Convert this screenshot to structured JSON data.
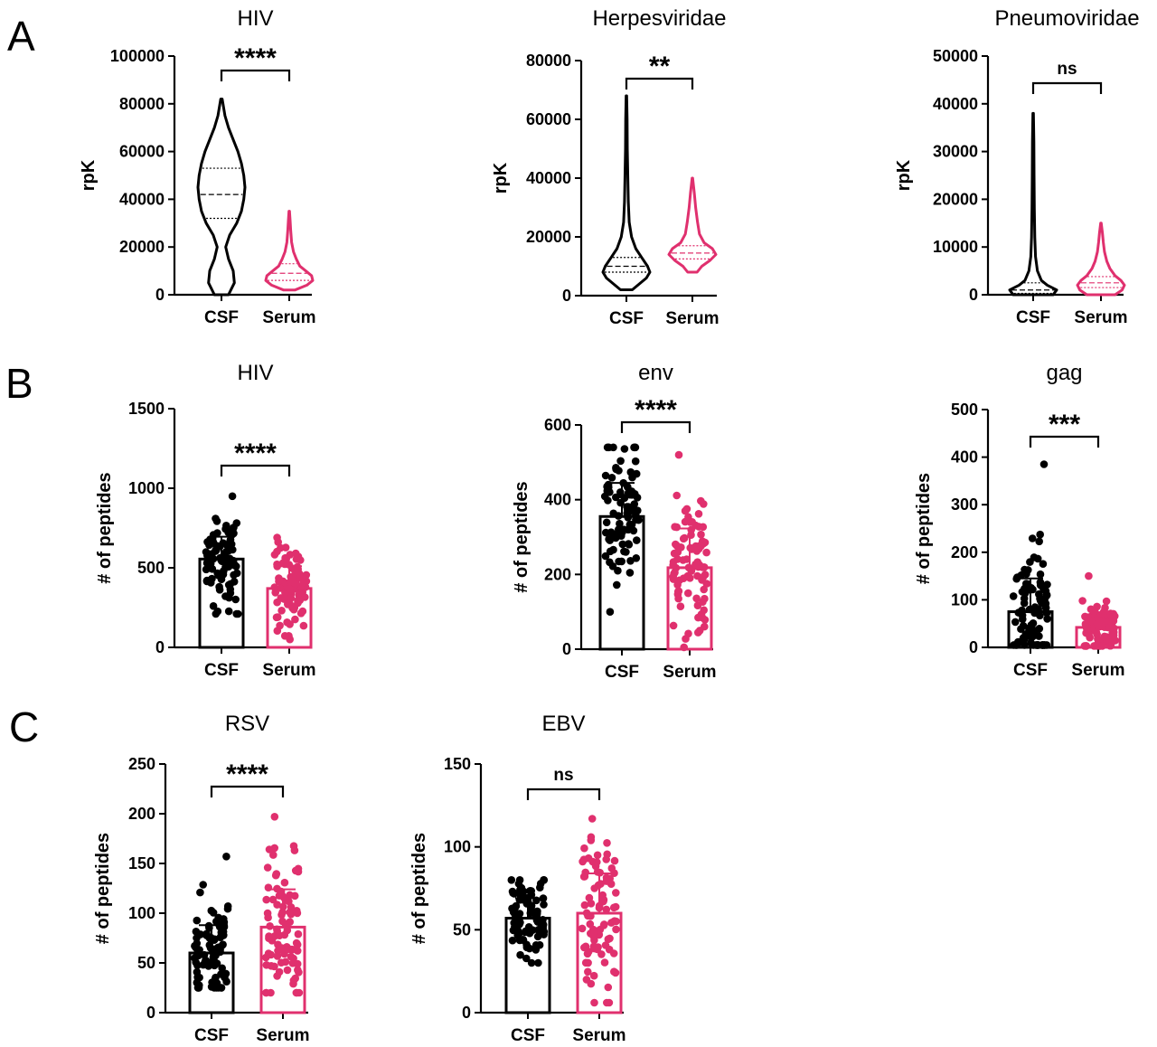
{
  "panels": [
    {
      "letter": "A"
    },
    {
      "letter": "B"
    },
    {
      "letter": "C"
    }
  ],
  "colors": {
    "csf": "#000000",
    "serum": "#e0306e"
  },
  "chart_data": [
    {
      "panel": "A",
      "type": "violin",
      "title": "HIV",
      "ylabel": "rpK",
      "ylim": [
        0,
        100000
      ],
      "yticks": [
        0,
        20000,
        40000,
        60000,
        80000,
        100000
      ],
      "categories": [
        "CSF",
        "Serum"
      ],
      "series": [
        {
          "name": "CSF",
          "color": "#000000",
          "min": 0,
          "max": 82000,
          "q1": 32000,
          "median": 42000,
          "q3": 53000,
          "density": [
            [
              0,
              0.3
            ],
            [
              5000,
              0.55
            ],
            [
              10000,
              0.5
            ],
            [
              15000,
              0.3
            ],
            [
              20000,
              0.18
            ],
            [
              25000,
              0.35
            ],
            [
              30000,
              0.65
            ],
            [
              35000,
              0.85
            ],
            [
              40000,
              0.95
            ],
            [
              45000,
              1.0
            ],
            [
              50000,
              0.95
            ],
            [
              55000,
              0.85
            ],
            [
              60000,
              0.7
            ],
            [
              65000,
              0.5
            ],
            [
              70000,
              0.3
            ],
            [
              75000,
              0.15
            ],
            [
              82000,
              0.03
            ]
          ]
        },
        {
          "name": "Serum",
          "color": "#e0306e",
          "min": 2000,
          "max": 35000,
          "q1": 6000,
          "median": 9000,
          "q3": 13000,
          "density": [
            [
              2000,
              0.25
            ],
            [
              4000,
              0.75
            ],
            [
              6000,
              1.0
            ],
            [
              8000,
              0.95
            ],
            [
              10000,
              0.7
            ],
            [
              12000,
              0.45
            ],
            [
              15000,
              0.3
            ],
            [
              18000,
              0.18
            ],
            [
              22000,
              0.1
            ],
            [
              27000,
              0.06
            ],
            [
              31000,
              0.04
            ],
            [
              35000,
              0.01
            ]
          ]
        }
      ],
      "comparison": {
        "label": "****"
      }
    },
    {
      "panel": "A",
      "type": "violin",
      "title": "Herpesviridae",
      "ylabel": "rpK",
      "ylim": [
        0,
        80000
      ],
      "yticks": [
        0,
        20000,
        40000,
        60000,
        80000
      ],
      "categories": [
        "CSF",
        "Serum"
      ],
      "series": [
        {
          "name": "CSF",
          "color": "#000000",
          "min": 2000,
          "max": 68000,
          "q1": 8000,
          "median": 10000,
          "q3": 13000,
          "density": [
            [
              2000,
              0.25
            ],
            [
              4000,
              0.55
            ],
            [
              6000,
              0.85
            ],
            [
              8000,
              1.0
            ],
            [
              10000,
              0.9
            ],
            [
              13000,
              0.65
            ],
            [
              16000,
              0.4
            ],
            [
              20000,
              0.22
            ],
            [
              25000,
              0.12
            ],
            [
              32000,
              0.08
            ],
            [
              40000,
              0.06
            ],
            [
              50000,
              0.04
            ],
            [
              60000,
              0.03
            ],
            [
              68000,
              0.01
            ]
          ]
        },
        {
          "name": "Serum",
          "color": "#e0306e",
          "min": 8000,
          "max": 40000,
          "q1": 12500,
          "median": 14500,
          "q3": 17000,
          "density": [
            [
              8000,
              0.2
            ],
            [
              10000,
              0.4
            ],
            [
              12000,
              0.75
            ],
            [
              14000,
              1.0
            ],
            [
              16000,
              0.85
            ],
            [
              18000,
              0.5
            ],
            [
              21000,
              0.3
            ],
            [
              25000,
              0.22
            ],
            [
              30000,
              0.14
            ],
            [
              35000,
              0.08
            ],
            [
              40000,
              0.01
            ]
          ]
        }
      ],
      "comparison": {
        "label": "**"
      }
    },
    {
      "panel": "A",
      "type": "violin",
      "title": "Pneumoviridae",
      "ylabel": "rpK",
      "ylim": [
        0,
        50000
      ],
      "yticks": [
        0,
        10000,
        20000,
        30000,
        40000,
        50000
      ],
      "categories": [
        "CSF",
        "Serum"
      ],
      "series": [
        {
          "name": "CSF",
          "color": "#000000",
          "min": 0,
          "max": 38000,
          "q1": 300,
          "median": 1000,
          "q3": 2500,
          "density": [
            [
              0,
              0.85
            ],
            [
              1000,
              1.0
            ],
            [
              2000,
              0.6
            ],
            [
              3000,
              0.35
            ],
            [
              5000,
              0.18
            ],
            [
              8000,
              0.1
            ],
            [
              12000,
              0.07
            ],
            [
              18000,
              0.05
            ],
            [
              25000,
              0.04
            ],
            [
              32000,
              0.03
            ],
            [
              38000,
              0.01
            ]
          ]
        },
        {
          "name": "Serum",
          "color": "#e0306e",
          "min": 0,
          "max": 15000,
          "q1": 1500,
          "median": 2500,
          "q3": 3800,
          "density": [
            [
              0,
              0.6
            ],
            [
              1000,
              0.9
            ],
            [
              2000,
              1.0
            ],
            [
              3000,
              0.85
            ],
            [
              4000,
              0.6
            ],
            [
              5500,
              0.38
            ],
            [
              7000,
              0.25
            ],
            [
              9000,
              0.15
            ],
            [
              11000,
              0.1
            ],
            [
              13000,
              0.06
            ],
            [
              15000,
              0.01
            ]
          ]
        }
      ],
      "comparison": {
        "label": "ns"
      }
    },
    {
      "panel": "B",
      "type": "bar",
      "title": "HIV",
      "ylabel": "# of peptides",
      "ylim": [
        0,
        1500
      ],
      "yticks": [
        0,
        500,
        1000,
        1500
      ],
      "categories": [
        "CSF",
        "Serum"
      ],
      "series": [
        {
          "name": "CSF",
          "color": "#000000",
          "mean": 555,
          "sd": 140,
          "min": 210,
          "max": 950,
          "n": 90
        },
        {
          "name": "Serum",
          "color": "#e0306e",
          "mean": 370,
          "sd": 140,
          "min": 50,
          "max": 690,
          "n": 90
        }
      ],
      "comparison": {
        "label": "****"
      }
    },
    {
      "panel": "B",
      "type": "bar",
      "title": "env",
      "ylabel": "# of peptides",
      "ylim": [
        0,
        600
      ],
      "yticks": [
        0,
        200,
        400,
        600
      ],
      "categories": [
        "CSF",
        "Serum"
      ],
      "series": [
        {
          "name": "CSF",
          "color": "#000000",
          "mean": 355,
          "sd": 90,
          "min": 100,
          "max": 540,
          "n": 90
        },
        {
          "name": "Serum",
          "color": "#e0306e",
          "mean": 218,
          "sd": 105,
          "min": 5,
          "max": 520,
          "n": 90
        }
      ],
      "comparison": {
        "label": "****"
      }
    },
    {
      "panel": "B",
      "type": "bar",
      "title": "gag",
      "ylabel": "# of peptides",
      "ylim": [
        0,
        500
      ],
      "yticks": [
        0,
        100,
        200,
        300,
        400,
        500
      ],
      "categories": [
        "CSF",
        "Serum"
      ],
      "series": [
        {
          "name": "CSF",
          "color": "#000000",
          "mean": 75,
          "sd": 70,
          "min": 5,
          "max": 385,
          "n": 90
        },
        {
          "name": "Serum",
          "color": "#e0306e",
          "mean": 42,
          "sd": 25,
          "min": 3,
          "max": 150,
          "n": 90
        }
      ],
      "comparison": {
        "label": "***"
      }
    },
    {
      "panel": "C",
      "type": "bar",
      "title": "RSV",
      "ylabel": "# of peptides",
      "ylim": [
        0,
        250
      ],
      "yticks": [
        0,
        50,
        100,
        150,
        200,
        250
      ],
      "categories": [
        "CSF",
        "Serum"
      ],
      "series": [
        {
          "name": "CSF",
          "color": "#000000",
          "mean": 60,
          "sd": 28,
          "min": 25,
          "max": 157,
          "n": 90
        },
        {
          "name": "Serum",
          "color": "#e0306e",
          "mean": 86,
          "sd": 38,
          "min": 20,
          "max": 197,
          "n": 90
        }
      ],
      "comparison": {
        "label": "****"
      }
    },
    {
      "panel": "C",
      "type": "bar",
      "title": "EBV",
      "ylabel": "# of peptides",
      "ylim": [
        0,
        150
      ],
      "yticks": [
        0,
        50,
        100,
        150
      ],
      "categories": [
        "CSF",
        "Serum"
      ],
      "series": [
        {
          "name": "CSF",
          "color": "#000000",
          "mean": 57,
          "sd": 12,
          "min": 30,
          "max": 80,
          "n": 90
        },
        {
          "name": "Serum",
          "color": "#e0306e",
          "mean": 60,
          "sd": 24,
          "min": 6,
          "max": 117,
          "n": 90
        }
      ],
      "comparison": {
        "label": "ns"
      }
    }
  ]
}
